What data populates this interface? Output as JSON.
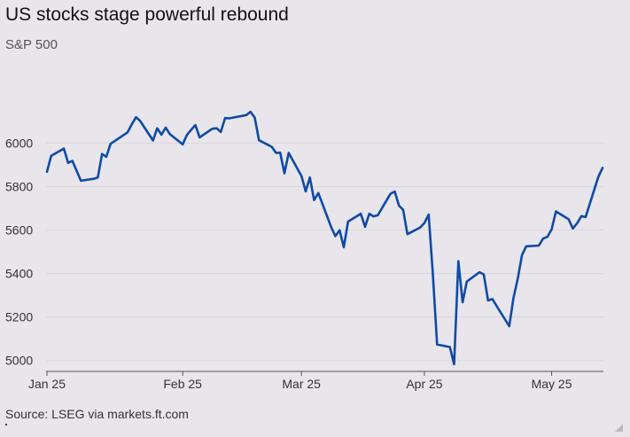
{
  "chart_data": {
    "type": "line",
    "title": "US stocks stage powerful rebound",
    "subtitle": "S&P 500",
    "source": "Source: LSEG via markets.ft.com",
    "line_color": "#0f4aa6",
    "gridlines": true,
    "ylim": [
      4950,
      6230
    ],
    "y_ticks": [
      5000,
      5200,
      5400,
      5600,
      5800,
      6000
    ],
    "x_ticks": [
      {
        "date": "2025-01-02",
        "label": "Jan 25"
      },
      {
        "date": "2025-02-03",
        "label": "Feb 25"
      },
      {
        "date": "2025-03-03",
        "label": "Mar 25"
      },
      {
        "date": "2025-04-01",
        "label": "Apr 25"
      },
      {
        "date": "2025-05-01",
        "label": "May 25"
      }
    ],
    "series": [
      {
        "points": [
          [
            "2025-01-02",
            5868
          ],
          [
            "2025-01-03",
            5942
          ],
          [
            "2025-01-06",
            5975
          ],
          [
            "2025-01-07",
            5909
          ],
          [
            "2025-01-08",
            5918
          ],
          [
            "2025-01-10",
            5827
          ],
          [
            "2025-01-13",
            5836
          ],
          [
            "2025-01-14",
            5842
          ],
          [
            "2025-01-15",
            5950
          ],
          [
            "2025-01-16",
            5937
          ],
          [
            "2025-01-17",
            5997
          ],
          [
            "2025-01-21",
            6049
          ],
          [
            "2025-01-22",
            6086
          ],
          [
            "2025-01-23",
            6119
          ],
          [
            "2025-01-24",
            6101
          ],
          [
            "2025-01-27",
            6012
          ],
          [
            "2025-01-28",
            6068
          ],
          [
            "2025-01-29",
            6039
          ],
          [
            "2025-01-30",
            6071
          ],
          [
            "2025-01-31",
            6041
          ],
          [
            "2025-02-03",
            5994
          ],
          [
            "2025-02-04",
            6037
          ],
          [
            "2025-02-05",
            6061
          ],
          [
            "2025-02-06",
            6083
          ],
          [
            "2025-02-07",
            6026
          ],
          [
            "2025-02-10",
            6066
          ],
          [
            "2025-02-11",
            6068
          ],
          [
            "2025-02-12",
            6051
          ],
          [
            "2025-02-13",
            6115
          ],
          [
            "2025-02-14",
            6114
          ],
          [
            "2025-02-18",
            6129
          ],
          [
            "2025-02-19",
            6144
          ],
          [
            "2025-02-20",
            6117
          ],
          [
            "2025-02-21",
            6013
          ],
          [
            "2025-02-24",
            5983
          ],
          [
            "2025-02-25",
            5955
          ],
          [
            "2025-02-26",
            5956
          ],
          [
            "2025-02-27",
            5861
          ],
          [
            "2025-02-28",
            5955
          ],
          [
            "2025-03-03",
            5849
          ],
          [
            "2025-03-04",
            5778
          ],
          [
            "2025-03-05",
            5842
          ],
          [
            "2025-03-06",
            5738
          ],
          [
            "2025-03-07",
            5770
          ],
          [
            "2025-03-10",
            5614
          ],
          [
            "2025-03-11",
            5572
          ],
          [
            "2025-03-12",
            5599
          ],
          [
            "2025-03-13",
            5521
          ],
          [
            "2025-03-14",
            5639
          ],
          [
            "2025-03-17",
            5675
          ],
          [
            "2025-03-18",
            5615
          ],
          [
            "2025-03-19",
            5675
          ],
          [
            "2025-03-20",
            5663
          ],
          [
            "2025-03-21",
            5668
          ],
          [
            "2025-03-24",
            5767
          ],
          [
            "2025-03-25",
            5777
          ],
          [
            "2025-03-26",
            5712
          ],
          [
            "2025-03-27",
            5693
          ],
          [
            "2025-03-28",
            5581
          ],
          [
            "2025-03-31",
            5612
          ],
          [
            "2025-04-01",
            5633
          ],
          [
            "2025-04-02",
            5671
          ],
          [
            "2025-04-03",
            5397
          ],
          [
            "2025-04-04",
            5074
          ],
          [
            "2025-04-07",
            5062
          ],
          [
            "2025-04-08",
            4983
          ],
          [
            "2025-04-09",
            5457
          ],
          [
            "2025-04-10",
            5268
          ],
          [
            "2025-04-11",
            5363
          ],
          [
            "2025-04-14",
            5406
          ],
          [
            "2025-04-15",
            5396
          ],
          [
            "2025-04-16",
            5276
          ],
          [
            "2025-04-17",
            5283
          ],
          [
            "2025-04-21",
            5158
          ],
          [
            "2025-04-22",
            5288
          ],
          [
            "2025-04-23",
            5376
          ],
          [
            "2025-04-24",
            5485
          ],
          [
            "2025-04-25",
            5525
          ],
          [
            "2025-04-28",
            5529
          ],
          [
            "2025-04-29",
            5561
          ],
          [
            "2025-04-30",
            5569
          ],
          [
            "2025-05-01",
            5604
          ],
          [
            "2025-05-02",
            5686
          ],
          [
            "2025-05-05",
            5650
          ],
          [
            "2025-05-06",
            5607
          ],
          [
            "2025-05-07",
            5631
          ],
          [
            "2025-05-08",
            5664
          ],
          [
            "2025-05-09",
            5660
          ],
          [
            "2025-05-12",
            5844
          ],
          [
            "2025-05-13",
            5886
          ]
        ]
      }
    ]
  }
}
